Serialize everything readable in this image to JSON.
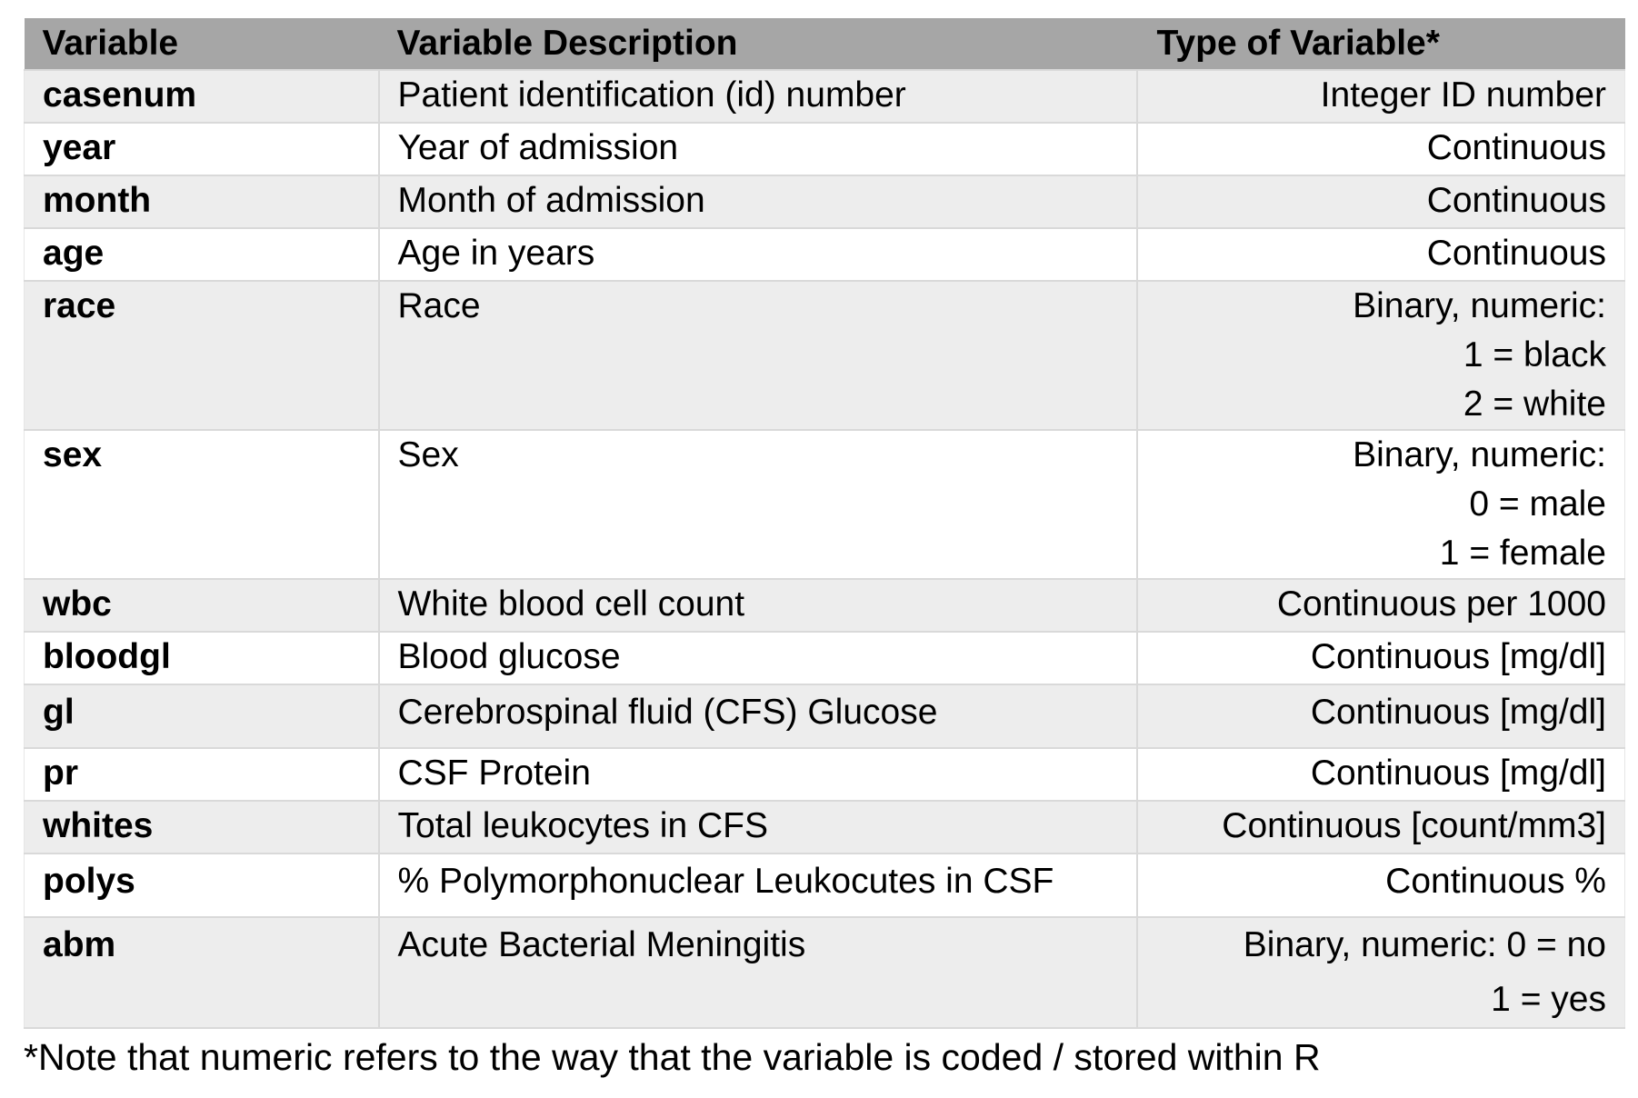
{
  "table": {
    "headers": [
      "Variable",
      "Variable Description",
      "Type of Variable*"
    ],
    "rows": [
      {
        "variable": "casenum",
        "description": "Patient identification (id) number",
        "type": [
          "Integer ID number"
        ]
      },
      {
        "variable": "year",
        "description": "Year of admission",
        "type": [
          "Continuous"
        ]
      },
      {
        "variable": "month",
        "description": "Month of admission",
        "type": [
          "Continuous"
        ]
      },
      {
        "variable": "age",
        "description": "Age in years",
        "type": [
          "Continuous"
        ]
      },
      {
        "variable": "race",
        "description": "Race",
        "type": [
          "Binary, numeric:",
          "1 = black",
          "2 = white"
        ]
      },
      {
        "variable": "sex",
        "description": "Sex",
        "type": [
          "Binary, numeric:",
          "0 = male",
          "1 = female"
        ]
      },
      {
        "variable": "wbc",
        "description": "White blood cell count",
        "type": [
          "Continuous per 1000"
        ]
      },
      {
        "variable": "bloodgl",
        "description": "Blood glucose",
        "type": [
          "Continuous [mg/dl]"
        ]
      },
      {
        "variable": "gl",
        "description": "Cerebrospinal fluid (CFS) Glucose",
        "type": [
          "Continuous [mg/dl]"
        ]
      },
      {
        "variable": "pr",
        "description": "CSF Protein",
        "type": [
          "Continuous [mg/dl]"
        ]
      },
      {
        "variable": "whites",
        "description": "Total leukocytes in CFS",
        "type": [
          "Continuous [count/mm3]"
        ]
      },
      {
        "variable": "polys",
        "description": "% Polymorphonuclear Leukocutes in CSF",
        "type": [
          "Continuous %"
        ]
      },
      {
        "variable": "abm",
        "description": "Acute Bacterial Meningitis",
        "type": [
          "Binary, numeric: 0 = no",
          "1 = yes"
        ]
      }
    ]
  },
  "footnote": "*Note that numeric refers to the way that the variable is coded / stored within R",
  "colors": {
    "header_bg": "#a6a6a6",
    "row_odd_bg": "#ededed",
    "row_even_bg": "#ffffff",
    "grid_line": "#d9d9d9"
  }
}
